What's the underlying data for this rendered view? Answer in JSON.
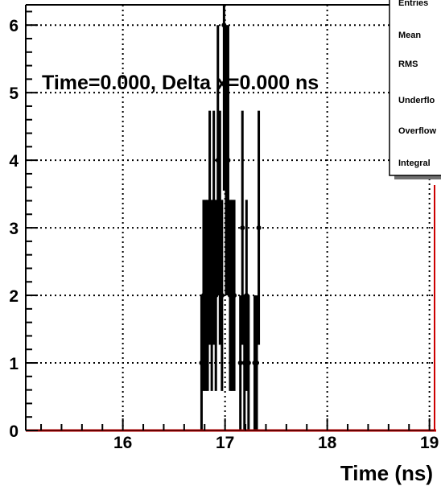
{
  "chart_data": {
    "type": "scatter",
    "title": "",
    "annotation": "Time=0.000, Delta x=0.000 ns",
    "xlabel": "Time (ns)",
    "ylabel": "",
    "xlim": [
      15.05,
      19.05
    ],
    "ylim": [
      0,
      6.3
    ],
    "x_ticks": [
      16,
      17,
      18,
      19
    ],
    "x_tick_labels": [
      "16",
      "17",
      "18",
      "19"
    ],
    "y_ticks": [
      0,
      1,
      2,
      3,
      4,
      5,
      6
    ],
    "y_tick_labels": [
      "0",
      "1",
      "2",
      "3",
      "4",
      "5",
      "6"
    ],
    "grid": true,
    "bin_width": 0.02,
    "points": [
      {
        "x": 16.77,
        "y": 1
      },
      {
        "x": 16.79,
        "y": 2
      },
      {
        "x": 16.81,
        "y": 2
      },
      {
        "x": 16.83,
        "y": 2
      },
      {
        "x": 16.85,
        "y": 3
      },
      {
        "x": 16.87,
        "y": 2
      },
      {
        "x": 16.89,
        "y": 3
      },
      {
        "x": 16.91,
        "y": 2
      },
      {
        "x": 16.93,
        "y": 4
      },
      {
        "x": 16.95,
        "y": 3
      },
      {
        "x": 16.97,
        "y": 2
      },
      {
        "x": 16.99,
        "y": 6
      },
      {
        "x": 17.01,
        "y": 4
      },
      {
        "x": 17.03,
        "y": 4
      },
      {
        "x": 17.05,
        "y": 2
      },
      {
        "x": 17.07,
        "y": 2
      },
      {
        "x": 17.09,
        "y": 2
      },
      {
        "x": 17.15,
        "y": 1
      },
      {
        "x": 17.17,
        "y": 3
      },
      {
        "x": 17.19,
        "y": 1
      },
      {
        "x": 17.21,
        "y": 2
      },
      {
        "x": 17.23,
        "y": 1
      },
      {
        "x": 17.29,
        "y": 1
      },
      {
        "x": 17.31,
        "y": 1
      },
      {
        "x": 17.33,
        "y": 3
      }
    ],
    "stats_box": {
      "labels": [
        "Entries",
        "Mean",
        "RMS",
        "Underflo",
        "Overflow",
        "Integral"
      ]
    },
    "colors": {
      "markers": "#000000",
      "grid": "#000000",
      "baseline": "#cc0000",
      "frame": "#000000"
    }
  }
}
